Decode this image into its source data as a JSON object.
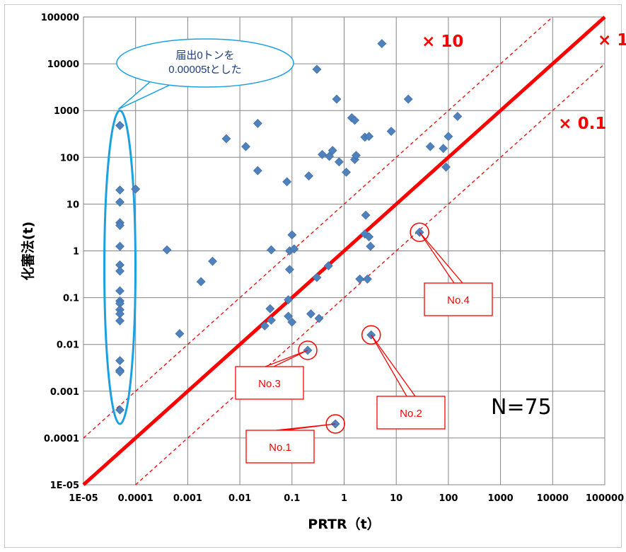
{
  "chart_data": {
    "type": "scatter",
    "title": "",
    "xlabel": "PRTR（t）",
    "ylabel": "化審法(t)",
    "xscale": "log",
    "yscale": "log",
    "xlim": [
      1e-05,
      100000
    ],
    "ylim": [
      1e-05,
      100000
    ],
    "grid": true,
    "marker": "diamond",
    "marker_color": "#4f81bd",
    "x_ticks": [
      "1E-05",
      "0.0001",
      "0.001",
      "0.01",
      "0.1",
      "1",
      "10",
      "100",
      "1000",
      "10000",
      "100000"
    ],
    "y_ticks": [
      "1E-05",
      "0.0001",
      "0.001",
      "0.01",
      "0.1",
      "1",
      "10",
      "100",
      "1000",
      "10000",
      "100000"
    ],
    "reference_lines": [
      {
        "label": "× 1",
        "factor": 1,
        "style": "solid",
        "color": "#ff0000"
      },
      {
        "label": "× 10",
        "factor": 10,
        "style": "dashed",
        "color": "#ff0000"
      },
      {
        "label": "× 0.1",
        "factor": 0.1,
        "style": "dashed",
        "color": "#ff0000"
      }
    ],
    "points": [
      [
        5e-05,
        480
      ],
      [
        5e-05,
        20
      ],
      [
        5e-05,
        11
      ],
      [
        5e-05,
        4
      ],
      [
        5e-05,
        3.5
      ],
      [
        5e-05,
        1.25
      ],
      [
        5e-05,
        0.5
      ],
      [
        5e-05,
        0.37
      ],
      [
        5e-05,
        0.14
      ],
      [
        5e-05,
        0.085
      ],
      [
        5e-05,
        0.075
      ],
      [
        5e-05,
        0.055
      ],
      [
        5e-05,
        0.045
      ],
      [
        5e-05,
        0.032
      ],
      [
        5e-05,
        0.0045
      ],
      [
        5e-05,
        0.0028
      ],
      [
        5e-05,
        0.0026
      ],
      [
        5e-05,
        0.0004
      ],
      [
        0.0001,
        21
      ],
      [
        0.0004,
        1.05
      ],
      [
        0.0007,
        0.017
      ],
      [
        0.0018,
        0.22
      ],
      [
        0.003,
        0.6
      ],
      [
        0.0055,
        250
      ],
      [
        0.013,
        170
      ],
      [
        0.022,
        530
      ],
      [
        0.022,
        52
      ],
      [
        0.03,
        0.025
      ],
      [
        0.038,
        0.058
      ],
      [
        0.04,
        1.05
      ],
      [
        0.04,
        0.033
      ],
      [
        0.08,
        30
      ],
      [
        0.085,
        0.04
      ],
      [
        0.085,
        0.09
      ],
      [
        0.09,
        0.4
      ],
      [
        0.09,
        1.0
      ],
      [
        0.1,
        2.2
      ],
      [
        0.1,
        0.03
      ],
      [
        0.11,
        1.1
      ],
      [
        0.2,
        0.0075
      ],
      [
        0.21,
        40
      ],
      [
        0.23,
        0.045
      ],
      [
        0.3,
        7600
      ],
      [
        0.3,
        0.27
      ],
      [
        0.33,
        0.036
      ],
      [
        0.38,
        115
      ],
      [
        0.5,
        0.48
      ],
      [
        0.52,
        105
      ],
      [
        0.6,
        140
      ],
      [
        0.68,
        0.0002
      ],
      [
        0.72,
        1750
      ],
      [
        0.8,
        80
      ],
      [
        1.1,
        48
      ],
      [
        1.4,
        700
      ],
      [
        1.6,
        620
      ],
      [
        1.6,
        90
      ],
      [
        1.7,
        110
      ],
      [
        2.0,
        0.25
      ],
      [
        2.5,
        270
      ],
      [
        2.5,
        2.3
      ],
      [
        2.6,
        5.8
      ],
      [
        2.8,
        0.25
      ],
      [
        3.0,
        280
      ],
      [
        3.0,
        2.0
      ],
      [
        3.2,
        1.25
      ],
      [
        3.3,
        0.016
      ],
      [
        5.3,
        27000
      ],
      [
        8.0,
        360
      ],
      [
        17,
        1750
      ],
      [
        28,
        2.5
      ],
      [
        45,
        170
      ],
      [
        80,
        155
      ],
      [
        90,
        62
      ],
      [
        100,
        280
      ],
      [
        150,
        750
      ]
    ],
    "annotations": [
      {
        "text": "No.1",
        "x": 0.68,
        "y": 0.0002
      },
      {
        "text": "No.2",
        "x": 3.3,
        "y": 0.016
      },
      {
        "text": "No.3",
        "x": 0.2,
        "y": 0.0075
      },
      {
        "text": "No.4",
        "x": 28,
        "y": 2.5
      }
    ],
    "callout": {
      "lines": [
        "届出0トンを",
        "0.00005tとした"
      ]
    },
    "count_label": "N=75",
    "colors": {
      "reference": "#ff0000",
      "callout": "#1ba1e2",
      "marker": "#4f81bd"
    }
  }
}
